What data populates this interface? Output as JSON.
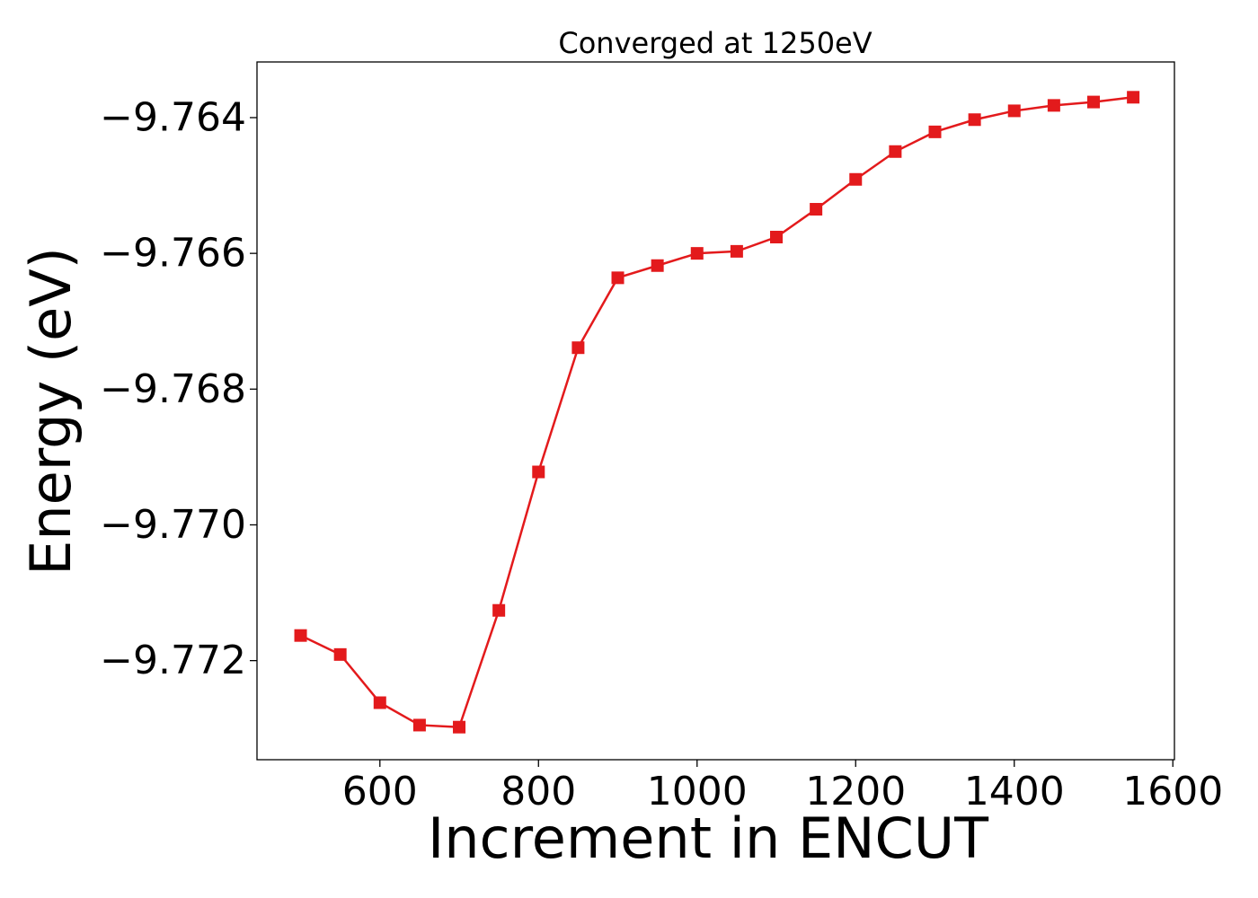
{
  "chart_data": {
    "type": "line",
    "title": "Converged at 1250eV",
    "xlabel": "Increment in ENCUT",
    "ylabel": "Energy (eV)",
    "xlim": [
      445,
      1602
    ],
    "ylim": [
      -9.77346,
      -9.76318
    ],
    "xticks": [
      600,
      800,
      1000,
      1200,
      1400,
      1600
    ],
    "yticks": [
      -9.764,
      -9.766,
      -9.768,
      -9.77,
      -9.772
    ],
    "ytick_labels": [
      "−9.764",
      "−9.766",
      "−9.768",
      "−9.770",
      "−9.772"
    ],
    "grid": false,
    "series": [
      {
        "color": "#e31a1c",
        "marker": "square",
        "x": [
          500,
          550,
          600,
          650,
          700,
          750,
          800,
          850,
          900,
          950,
          1000,
          1050,
          1100,
          1150,
          1200,
          1250,
          1300,
          1350,
          1400,
          1450,
          1500,
          1550
        ],
        "y": [
          -9.77163,
          -9.77191,
          -9.77262,
          -9.77295,
          -9.77298,
          -9.77126,
          -9.76922,
          -9.76739,
          -9.76636,
          -9.76618,
          -9.766,
          -9.76597,
          -9.76576,
          -9.76535,
          -9.76491,
          -9.7645,
          -9.76421,
          -9.76403,
          -9.7639,
          -9.76382,
          -9.76377,
          -9.7637
        ]
      }
    ]
  }
}
